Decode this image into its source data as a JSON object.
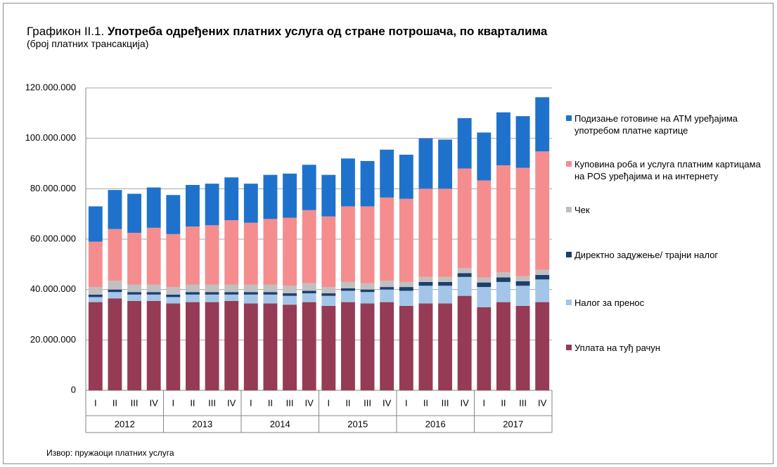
{
  "chart_data": {
    "type": "stacked_bar",
    "title_prefix": "Графикон II.1.",
    "title": "Употреба одређених платних услуга од стране потрошача, по кварталима",
    "subtitle": "(број платних трансакција)",
    "source": "Извор: пружаоци платних услуга",
    "categories": [
      "I",
      "II",
      "III",
      "IV",
      "I",
      "II",
      "III",
      "IV",
      "I",
      "II",
      "III",
      "IV",
      "I",
      "II",
      "III",
      "IV",
      "I",
      "II",
      "III",
      "IV",
      "I",
      "II",
      "III",
      "IV"
    ],
    "year_groups": [
      "2012",
      "2013",
      "2014",
      "2015",
      "2016",
      "2017"
    ],
    "series": [
      {
        "name": "Уплата на туђ рачун",
        "color": "#953b55",
        "values": [
          35000000,
          36500000,
          35500000,
          35500000,
          34500000,
          35000000,
          35000000,
          35500000,
          34500000,
          34500000,
          34000000,
          35000000,
          33500000,
          35000000,
          34500000,
          35000000,
          33500000,
          34500000,
          34500000,
          37500000,
          33000000,
          35000000,
          33500000,
          35000000
        ]
      },
      {
        "name": "Налог за пренос",
        "color": "#a3c6e8",
        "values": [
          2000000,
          2500000,
          2500000,
          2500000,
          2500000,
          3000000,
          3000000,
          2500000,
          3500000,
          3500000,
          3500000,
          3500000,
          4000000,
          4500000,
          4500000,
          5000000,
          6000000,
          7000000,
          7000000,
          7500000,
          8000000,
          8000000,
          8000000,
          9000000
        ]
      },
      {
        "name": "Директно задужење/ трајни налог",
        "color": "#1c3f6e",
        "values": [
          1000000,
          1000000,
          1000000,
          1000000,
          1000000,
          1000000,
          1000000,
          1000000,
          1000000,
          1000000,
          1000000,
          1000000,
          1000000,
          1000000,
          1000000,
          1000000,
          1500000,
          1500000,
          1500000,
          1500000,
          1800000,
          1800000,
          1800000,
          1800000
        ]
      },
      {
        "name": "Чек",
        "color": "#c0c0c0",
        "values": [
          3000000,
          3500000,
          3000000,
          3000000,
          3000000,
          3000000,
          3000000,
          3000000,
          3000000,
          3000000,
          3000000,
          3000000,
          2500000,
          2500000,
          2500000,
          2500000,
          2000000,
          2000000,
          2000000,
          2000000,
          2000000,
          2000000,
          2000000,
          2000000
        ]
      },
      {
        "name": "Куповина роба и услуга платним картицама на POS уређајима и на интернету",
        "color": "#f58d8e",
        "values": [
          18000000,
          20500000,
          20500000,
          22500000,
          21000000,
          23000000,
          23500000,
          25500000,
          24500000,
          26000000,
          27000000,
          29000000,
          28000000,
          30000000,
          30500000,
          33000000,
          33000000,
          35000000,
          35000000,
          39500000,
          38500000,
          42500000,
          43000000,
          47000000
        ]
      },
      {
        "name": "Подизање готовине на АТМ уређајима употребом платне картице",
        "color": "#1f72cc",
        "values": [
          14000000,
          15500000,
          15500000,
          16000000,
          15500000,
          16500000,
          16500000,
          17000000,
          15500000,
          17500000,
          17500000,
          18000000,
          16500000,
          19000000,
          18000000,
          19000000,
          17500000,
          20000000,
          19500000,
          20000000,
          19000000,
          21000000,
          20500000,
          21500000
        ]
      }
    ],
    "ylim": [
      0,
      120000000
    ],
    "yticks": [
      0,
      {
        "value": 20000000,
        "label": "20.000.000"
      },
      {
        "value": 40000000,
        "label": "40.000.000"
      },
      {
        "value": 60000000,
        "label": "60.000.000"
      },
      {
        "value": 80000000,
        "label": "80.000.000"
      },
      {
        "value": 100000000,
        "label": "100.000.000"
      },
      {
        "value": 120000000,
        "label": "120.000.000"
      }
    ],
    "grid": true,
    "legend": "right"
  }
}
